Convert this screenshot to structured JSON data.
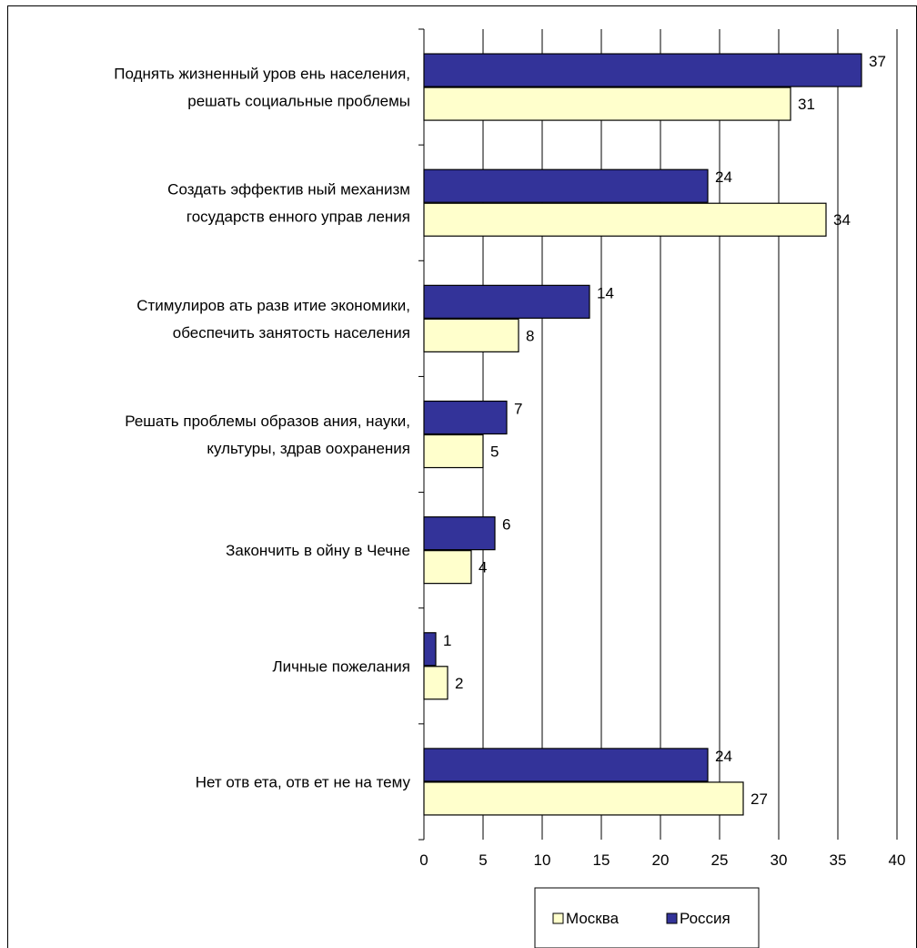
{
  "chart_data": {
    "type": "bar",
    "orientation": "horizontal",
    "categories": [
      [
        "Поднять жизненный уров ень населения,",
        "решать социальные проблемы"
      ],
      [
        "Создать эффектив ный механизм",
        "государств енного управ ления"
      ],
      [
        "Стимулиров ать разв итие экономики,",
        "обеспечить занятость населения"
      ],
      [
        "Решать проблемы образов ания, науки,",
        "культуры, здрав оохранения"
      ],
      [
        "Закончить в ойну в Чечне"
      ],
      [
        "Личные пожелания"
      ],
      [
        "Нет отв ета, отв ет не на тему"
      ]
    ],
    "series": [
      {
        "name": "Россия",
        "color": "#333399",
        "values": [
          37,
          24,
          14,
          7,
          6,
          1,
          24
        ]
      },
      {
        "name": "Москва",
        "color": "#FFFFCC",
        "values": [
          31,
          34,
          8,
          5,
          4,
          2,
          27
        ]
      }
    ],
    "xlim": [
      0,
      40
    ],
    "xticks": [
      0,
      5,
      10,
      15,
      20,
      25,
      30,
      35,
      40
    ],
    "grid": true,
    "legend": {
      "placement": "bottom",
      "order": [
        "Москва",
        "Россия"
      ]
    }
  }
}
